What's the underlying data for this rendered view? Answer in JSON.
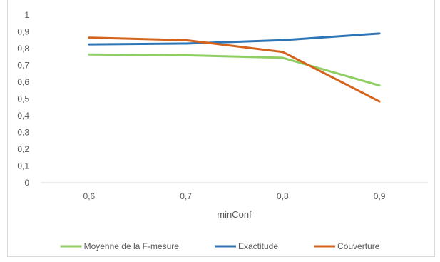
{
  "chart_data": {
    "type": "line",
    "title": "",
    "xlabel": "minConf",
    "ylabel": "",
    "categories": [
      "0,6",
      "0,7",
      "0,8",
      "0,9"
    ],
    "yticks": [
      "0",
      "0,1",
      "0,2",
      "0,3",
      "0,4",
      "0,5",
      "0,6",
      "0,7",
      "0,8",
      "0,9",
      "1"
    ],
    "ylim": [
      0,
      1
    ],
    "grid": false,
    "legend_position": "bottom",
    "series": [
      {
        "name": "Moyenne de la F-mesure",
        "color": "#8fce62",
        "values": [
          0.765,
          0.76,
          0.745,
          0.58
        ]
      },
      {
        "name": "Exactitude",
        "color": "#2e75b6",
        "values": [
          0.825,
          0.83,
          0.85,
          0.89
        ]
      },
      {
        "name": "Couverture",
        "color": "#d4631c",
        "values": [
          0.865,
          0.85,
          0.78,
          0.485
        ]
      }
    ]
  }
}
